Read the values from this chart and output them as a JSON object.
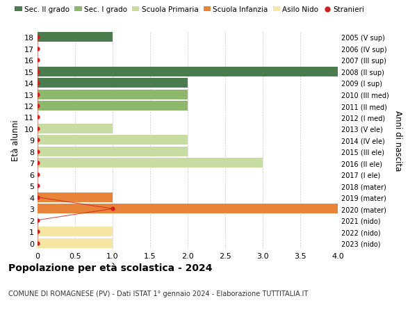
{
  "ages": [
    0,
    1,
    2,
    3,
    4,
    5,
    6,
    7,
    8,
    9,
    10,
    11,
    12,
    13,
    14,
    15,
    16,
    17,
    18
  ],
  "right_labels": [
    "2023 (nido)",
    "2022 (nido)",
    "2021 (nido)",
    "2020 (mater)",
    "2019 (mater)",
    "2018 (mater)",
    "2017 (I ele)",
    "2016 (II ele)",
    "2015 (III ele)",
    "2014 (IV ele)",
    "2013 (V ele)",
    "2012 (I med)",
    "2011 (II med)",
    "2010 (III med)",
    "2009 (I sup)",
    "2008 (II sup)",
    "2007 (III sup)",
    "2006 (IV sup)",
    "2005 (V sup)"
  ],
  "bar_values": [
    1,
    1,
    0,
    4,
    1,
    0,
    0,
    3,
    2,
    2,
    1,
    0,
    2,
    2,
    2,
    4,
    0,
    0,
    1
  ],
  "bar_colors": [
    "#f5e6a3",
    "#f5e6a3",
    "#f5e6a3",
    "#e8843a",
    "#e8843a",
    "#e8843a",
    "#c8dba0",
    "#c8dba0",
    "#c8dba0",
    "#c8dba0",
    "#c8dba0",
    "#8db86b",
    "#8db86b",
    "#8db86b",
    "#4a7c4e",
    "#4a7c4e",
    "#4a7c4e",
    "#4a7c4e",
    "#4a7c4e"
  ],
  "stranieri_x": [
    0,
    0,
    0,
    1,
    0,
    0,
    0,
    0,
    0,
    0,
    0,
    0,
    0,
    0,
    0,
    0,
    0,
    0,
    0
  ],
  "legend_labels": [
    "Sec. II grado",
    "Sec. I grado",
    "Scuola Primaria",
    "Scuola Infanzia",
    "Asilo Nido",
    "Stranieri"
  ],
  "legend_colors": [
    "#4a7c4e",
    "#8db86b",
    "#c8dba0",
    "#e8843a",
    "#f5e6a3",
    "#cc2222"
  ],
  "title": "Popolazione per età scolastica - 2024",
  "subtitle": "COMUNE DI ROMAGNESE (PV) - Dati ISTAT 1° gennaio 2024 - Elaborazione TUTTITALIA.IT",
  "ylabel": "Età alunni",
  "right_ylabel": "Anni di nascita",
  "xlim": [
    0,
    4.0
  ],
  "xticks": [
    0,
    0.5,
    1.0,
    1.5,
    2.0,
    2.5,
    3.0,
    3.5,
    4.0
  ],
  "xtick_labels": [
    "0",
    "0.5",
    "1.0",
    "1.5",
    "2.0",
    "2.5",
    "3.0",
    "3.5",
    "4.0"
  ],
  "background_color": "#ffffff",
  "grid_color": "#cccccc"
}
